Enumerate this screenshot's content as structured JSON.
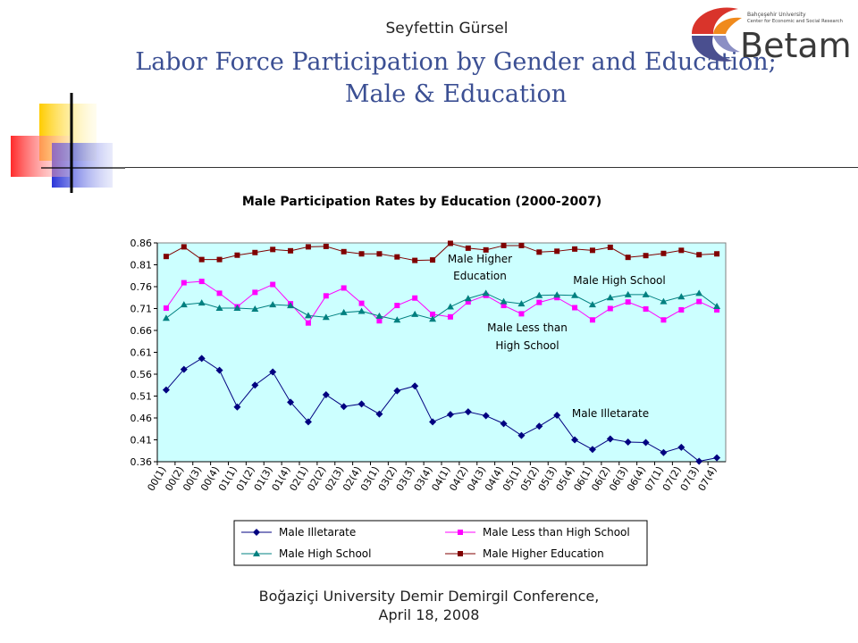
{
  "header": {
    "author": "Seyfettin Gürsel",
    "title_line1": "Labor Force Participation by Gender and Education;",
    "title_line2": "Male & Education"
  },
  "logo": {
    "university": "Bahçeşehir University",
    "center": "Center for Economic and Social Research",
    "brand": "Betam"
  },
  "footer": {
    "line1": "Boğaziçi University Demir Demirgil Conference,",
    "line2": "April 18, 2008"
  },
  "colors": {
    "plot_bg": "#ccffff",
    "illiterate": "#000080",
    "less_than_hs": "#ff00ff",
    "high_school": "#008080",
    "higher_ed": "#800000",
    "title_blue": "#3b4f93"
  },
  "chart_data": {
    "type": "line",
    "title": "Male Participation Rates by Education (2000-2007)",
    "xlabel": "",
    "ylabel": "",
    "ylim": [
      0.36,
      0.86
    ],
    "yticks": [
      0.36,
      0.41,
      0.46,
      0.51,
      0.56,
      0.61,
      0.66,
      0.71,
      0.76,
      0.81,
      0.86
    ],
    "grid": false,
    "legend": "bottom",
    "categories": [
      "00(1)",
      "00(2)",
      "00(3)",
      "00(4)",
      "01(1)",
      "01(2)",
      "01(3)",
      "01(4)",
      "02(1)",
      "02(2)",
      "02(3)",
      "02(4)",
      "03(1)",
      "03(2)",
      "03(3)",
      "03(4)",
      "04(1)",
      "04(2)",
      "04(3)",
      "04(4)",
      "05(1)",
      "05(2)",
      "05(3)",
      "05(4)",
      "06(1)",
      "06(2)",
      "06(3)",
      "06(4)",
      "07(1)",
      "07(2)",
      "07(3)",
      "07(4)"
    ],
    "series": [
      {
        "name": "Male Illetarate",
        "marker": "diamond",
        "color": "#000080",
        "values": [
          0.524,
          0.571,
          0.596,
          0.569,
          0.485,
          0.535,
          0.565,
          0.496,
          0.451,
          0.513,
          0.486,
          0.492,
          0.469,
          0.522,
          0.533,
          0.451,
          0.468,
          0.474,
          0.465,
          0.447,
          0.42,
          0.441,
          0.466,
          0.41,
          0.388,
          0.412,
          0.405,
          0.404,
          0.381,
          0.393,
          0.361,
          0.369
        ]
      },
      {
        "name": "Male Less than High School",
        "marker": "square",
        "color": "#ff00ff",
        "values": [
          0.711,
          0.769,
          0.772,
          0.745,
          0.714,
          0.747,
          0.765,
          0.721,
          0.677,
          0.739,
          0.757,
          0.722,
          0.682,
          0.717,
          0.734,
          0.697,
          0.691,
          0.725,
          0.74,
          0.717,
          0.698,
          0.724,
          0.735,
          0.712,
          0.684,
          0.71,
          0.725,
          0.709,
          0.684,
          0.707,
          0.726,
          0.707
        ]
      },
      {
        "name": "Male High School",
        "marker": "triangle",
        "color": "#008080",
        "values": [
          0.688,
          0.719,
          0.723,
          0.711,
          0.711,
          0.709,
          0.719,
          0.717,
          0.694,
          0.69,
          0.701,
          0.704,
          0.693,
          0.684,
          0.697,
          0.686,
          0.714,
          0.733,
          0.745,
          0.726,
          0.721,
          0.74,
          0.741,
          0.74,
          0.719,
          0.735,
          0.742,
          0.742,
          0.726,
          0.737,
          0.745,
          0.715
        ]
      },
      {
        "name": "Male Higher Education",
        "marker": "square",
        "color": "#800000",
        "values": [
          0.829,
          0.851,
          0.822,
          0.822,
          0.832,
          0.838,
          0.845,
          0.842,
          0.851,
          0.852,
          0.84,
          0.835,
          0.835,
          0.828,
          0.82,
          0.821,
          0.859,
          0.848,
          0.844,
          0.854,
          0.854,
          0.839,
          0.841,
          0.846,
          0.843,
          0.85,
          0.827,
          0.831,
          0.836,
          0.843,
          0.833,
          0.835
        ]
      }
    ],
    "annotations": [
      {
        "text": "Male Higher Education",
        "lines": [
          "Male Higher",
          "Education"
        ],
        "series": "Male Higher Education"
      },
      {
        "text": "Male High School",
        "lines": [
          "Male High School"
        ],
        "series": "Male High School"
      },
      {
        "text": "Male Less than High School",
        "lines": [
          "Male Less than",
          "High School"
        ],
        "series": "Male Less than High School"
      },
      {
        "text": "Male Illetarate",
        "lines": [
          "Male Illetarate"
        ],
        "series": "Male Illetarate"
      }
    ]
  }
}
